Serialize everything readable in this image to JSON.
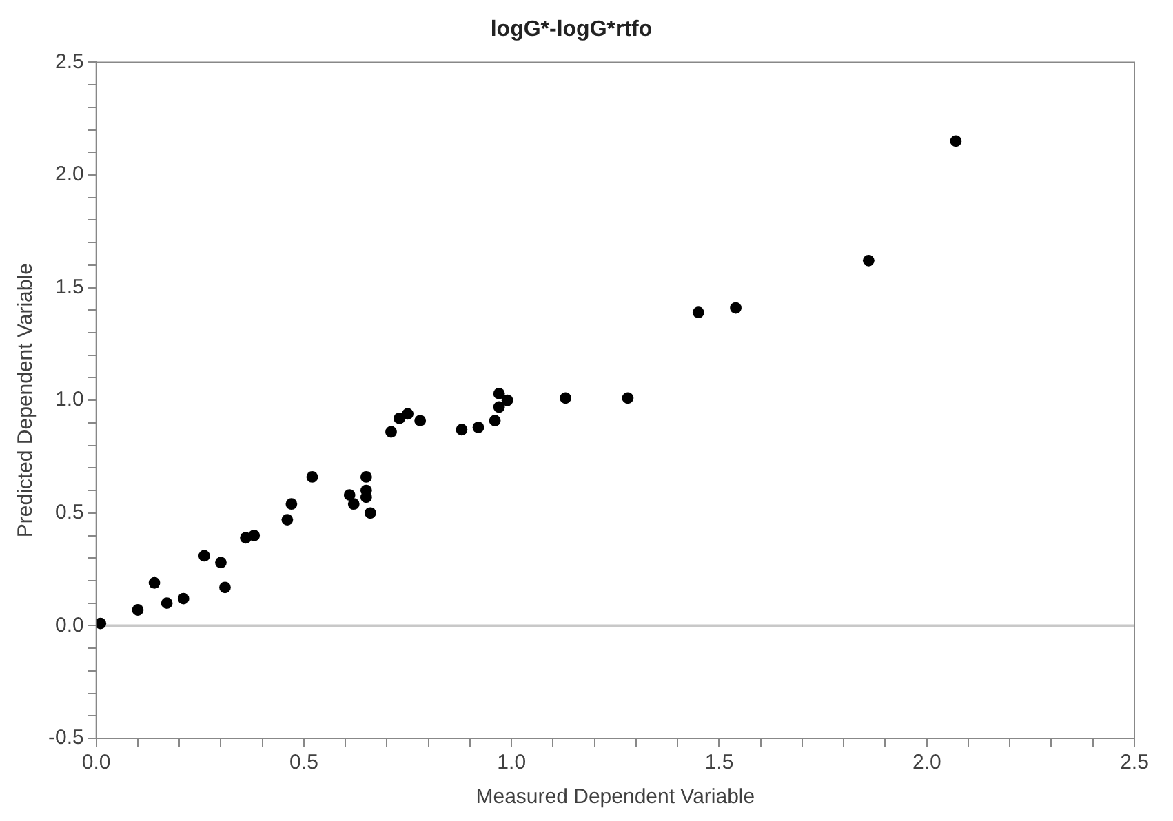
{
  "chart_data": {
    "type": "scatter",
    "title": "logG*-logG*rtfo",
    "xlabel": "Measured Dependent Variable",
    "ylabel": "Predicted Dependent Variable",
    "x": [
      0.01,
      0.1,
      0.14,
      0.17,
      0.21,
      0.26,
      0.3,
      0.31,
      0.36,
      0.38,
      0.46,
      0.47,
      0.52,
      0.61,
      0.62,
      0.65,
      0.65,
      0.65,
      0.66,
      0.71,
      0.73,
      0.75,
      0.78,
      0.88,
      0.92,
      0.96,
      0.97,
      0.97,
      0.99,
      1.13,
      1.28,
      1.45,
      1.54,
      1.86,
      2.07
    ],
    "series": [
      {
        "color": "#000000",
        "values": [
          0.01,
          0.07,
          0.19,
          0.1,
          0.12,
          0.31,
          0.28,
          0.17,
          0.39,
          0.4,
          0.47,
          0.54,
          0.66,
          0.58,
          0.54,
          0.57,
          0.6,
          0.66,
          0.5,
          0.86,
          0.92,
          0.94,
          0.91,
          0.87,
          0.88,
          0.91,
          1.03,
          0.97,
          1.0,
          1.01,
          1.01,
          1.39,
          1.41,
          1.62,
          2.15
        ]
      }
    ],
    "marker": "circle",
    "grid": false,
    "legend": false,
    "xlim": [
      0,
      2.5
    ],
    "ylim": [
      -0.5,
      2.5
    ],
    "xticks": [
      {
        "value": 0,
        "label": "0.0"
      },
      {
        "value": 0.1,
        "label": null
      },
      {
        "value": 0.2,
        "label": null
      },
      {
        "value": 0.3,
        "label": null
      },
      {
        "value": 0.4,
        "label": null
      },
      {
        "value": 0.5,
        "label": "0.5"
      },
      {
        "value": 0.6,
        "label": null
      },
      {
        "value": 0.7,
        "label": null
      },
      {
        "value": 0.8,
        "label": null
      },
      {
        "value": 0.9,
        "label": null
      },
      {
        "value": 1,
        "label": "1.0"
      },
      {
        "value": 1.1,
        "label": null
      },
      {
        "value": 1.2,
        "label": null
      },
      {
        "value": 1.3,
        "label": null
      },
      {
        "value": 1.4,
        "label": null
      },
      {
        "value": 1.5,
        "label": "1.5"
      },
      {
        "value": 1.6,
        "label": null
      },
      {
        "value": 1.7,
        "label": null
      },
      {
        "value": 1.8,
        "label": null
      },
      {
        "value": 1.9,
        "label": null
      },
      {
        "value": 2,
        "label": "2.0"
      },
      {
        "value": 2.1,
        "label": null
      },
      {
        "value": 2.2,
        "label": null
      },
      {
        "value": 2.3,
        "label": null
      },
      {
        "value": 2.4,
        "label": null
      },
      {
        "value": 2.5,
        "label": "2.5"
      }
    ],
    "yticks": [
      {
        "value": -0.5,
        "label": "-0.5"
      },
      {
        "value": -0.4,
        "label": null
      },
      {
        "value": -0.3,
        "label": null
      },
      {
        "value": -0.2,
        "label": null
      },
      {
        "value": -0.1,
        "label": null
      },
      {
        "value": 0,
        "label": "0.0"
      },
      {
        "value": 0.1,
        "label": null
      },
      {
        "value": 0.2,
        "label": null
      },
      {
        "value": 0.3,
        "label": null
      },
      {
        "value": 0.4,
        "label": null
      },
      {
        "value": 0.5,
        "label": "0.5"
      },
      {
        "value": 0.6,
        "label": null
      },
      {
        "value": 0.7,
        "label": null
      },
      {
        "value": 0.8,
        "label": null
      },
      {
        "value": 0.9,
        "label": null
      },
      {
        "value": 1,
        "label": "1.0"
      },
      {
        "value": 1.1,
        "label": null
      },
      {
        "value": 1.2,
        "label": null
      },
      {
        "value": 1.3,
        "label": null
      },
      {
        "value": 1.4,
        "label": null
      },
      {
        "value": 1.5,
        "label": "1.5"
      },
      {
        "value": 1.6,
        "label": null
      },
      {
        "value": 1.7,
        "label": null
      },
      {
        "value": 1.8,
        "label": null
      },
      {
        "value": 1.9,
        "label": null
      },
      {
        "value": 2,
        "label": "2.0"
      },
      {
        "value": 2.1,
        "label": null
      },
      {
        "value": 2.2,
        "label": null
      },
      {
        "value": 2.3,
        "label": null
      },
      {
        "value": 2.4,
        "label": null
      },
      {
        "value": 2.5,
        "label": "2.5"
      }
    ],
    "ref_lines": [
      {
        "axis": "y",
        "value": 0,
        "color": "#c8c8c8"
      }
    ]
  }
}
